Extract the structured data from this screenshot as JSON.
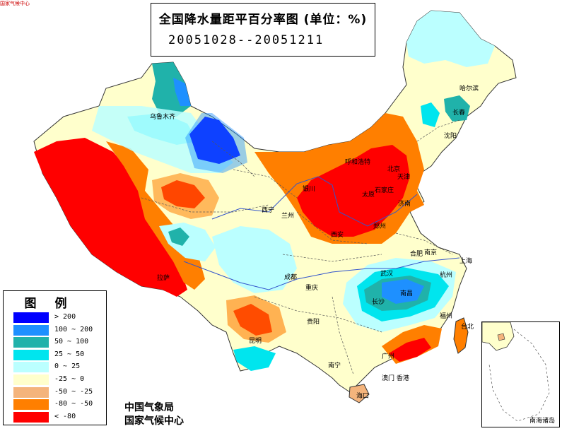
{
  "title": {
    "line1": "全国降水量距平百分率图 (单位：%)",
    "line2": "20051028--20051211"
  },
  "legend": {
    "title": "图例",
    "items": [
      {
        "label": "> 200",
        "color": "#0000ff"
      },
      {
        "label": "100 ~ 200",
        "color": "#1e90ff"
      },
      {
        "label": "50 ~ 100",
        "color": "#20b2aa"
      },
      {
        "label": "25 ~ 50",
        "color": "#00e5ee"
      },
      {
        "label": "0 ~ 25",
        "color": "#bbffff"
      },
      {
        "label": "-25 ~ 0",
        "color": "#ffffcc"
      },
      {
        "label": "-50 ~ -25",
        "color": "#f4b47c"
      },
      {
        "label": "-80 ~ -50",
        "color": "#ff7f00"
      },
      {
        "label": "< -80",
        "color": "#ff0000"
      }
    ]
  },
  "credits": {
    "line1": "中国气象局",
    "line2": "国家气候中心"
  },
  "inset": {
    "label": "南海诸岛"
  },
  "cities": {
    "haerbin": "哈尔滨",
    "changchun": "长春",
    "shenyang": "沈阳",
    "huhehaote": "呼和浩特",
    "beijing": "北京",
    "tianjin": "天津",
    "shijiazhuang": "石家庄",
    "taiyuan": "太原",
    "jinan": "济南",
    "yinchuan": "银川",
    "lanzhou": "兰州",
    "xining": "西宁",
    "xian": "西安",
    "zhengzhou": "郑州",
    "hefei": "合肥",
    "nanjing": "南京",
    "shanghai": "上海",
    "wuhan": "武汉",
    "hangzhou": "杭州",
    "nanchang": "南昌",
    "changsha": "长沙",
    "fuzhou": "福州",
    "taibei": "台北",
    "chengdu": "成都",
    "chongqing": "重庆",
    "guiyang": "贵阳",
    "kunming": "昆明",
    "nanning": "南宁",
    "guangzhou": "广州",
    "aomen_xianggang": "澳门 香港",
    "haikou": "海口",
    "lasa": "拉萨",
    "wulumuqi": "乌鲁木齐"
  },
  "top_corner": "国家气候中心"
}
